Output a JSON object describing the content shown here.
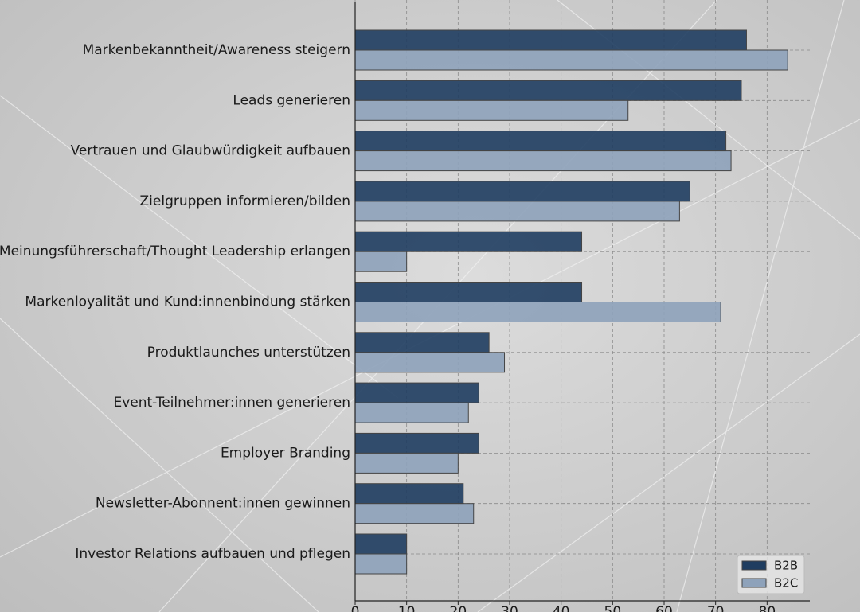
{
  "chart_data": {
    "type": "barh",
    "categories": [
      "Markenbekanntheit/Awareness steigern",
      "Leads generieren",
      "Vertrauen und Glaubwürdigkeit aufbauen",
      "Zielgruppen informieren/bilden",
      "Meinungsführerschaft/Thought Leadership erlangen",
      "Markenloyalität und Kund:innenbindung stärken",
      "Produktlaunches unterstützen",
      "Event-Teilnehmer:innen generieren",
      "Employer Branding",
      "Newsletter-Abonnent:innen gewinnen",
      "Investor Relations aufbauen und pflegen"
    ],
    "series": [
      {
        "name": "B2B",
        "color": "#1f3d60",
        "values": [
          76,
          75,
          72,
          65,
          44,
          44,
          26,
          24,
          24,
          21,
          10
        ]
      },
      {
        "name": "B2C",
        "color": "#8ea2ba",
        "values": [
          84,
          53,
          73,
          63,
          10,
          71,
          29,
          22,
          20,
          23,
          10
        ]
      }
    ],
    "xlim": [
      0,
      88.3
    ],
    "xticks": [
      0,
      10,
      20,
      30,
      40,
      50,
      60,
      70,
      80
    ],
    "grid": true,
    "legend": "lower right"
  }
}
